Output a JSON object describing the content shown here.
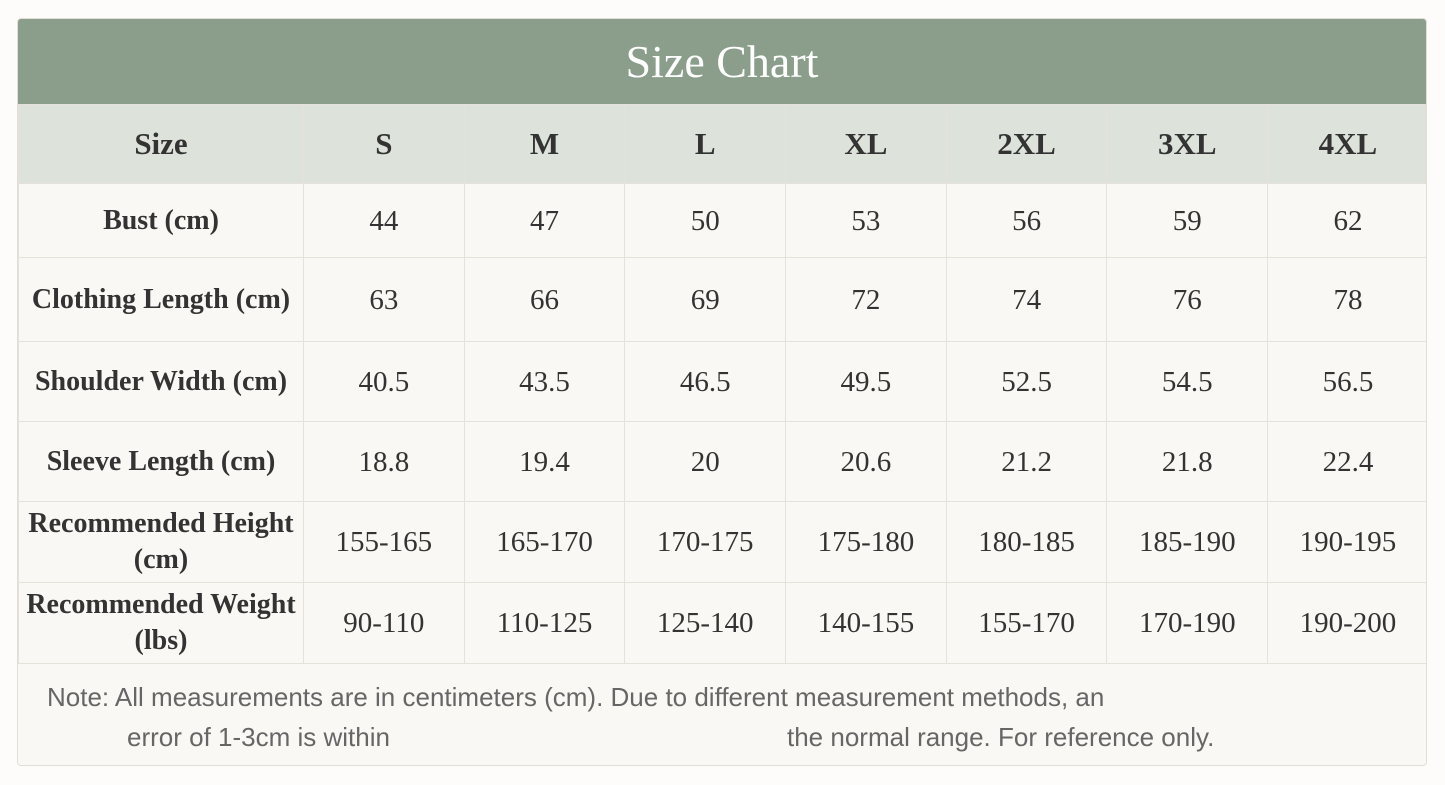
{
  "header": {
    "title": "Size Chart"
  },
  "table": {
    "columns": [
      "Size",
      "S",
      "M",
      "L",
      "XL",
      "2XL",
      "3XL",
      "4XL"
    ],
    "rows": [
      [
        "Bust (cm)",
        "44",
        "47",
        "50",
        "53",
        "56",
        "59",
        "62"
      ],
      [
        "Clothing Length (cm)",
        "63",
        "66",
        "69",
        "72",
        "74",
        "76",
        "78"
      ],
      [
        "Shoulder Width (cm)",
        "40.5",
        "43.5",
        "46.5",
        "49.5",
        "52.5",
        "54.5",
        "56.5"
      ],
      [
        "Sleeve Length (cm)",
        "18.8",
        "19.4",
        "20",
        "20.6",
        "21.2",
        "21.8",
        "22.4"
      ],
      [
        "Recommended Height (cm)",
        "155-165",
        "165-170",
        "170-175",
        "175-180",
        "180-185",
        "185-190",
        "190-195"
      ],
      [
        "Recommended Weight (lbs)",
        "90-110",
        "110-125",
        "125-140",
        "140-155",
        "155-170",
        "170-190",
        "190-200"
      ]
    ]
  },
  "note": {
    "line1": "Note: All measurements are in centimeters (cm). Due to different measurement methods, an",
    "line2_start": "error of 1-3cm is within",
    "line2_end": "the normal range. For reference only."
  }
}
